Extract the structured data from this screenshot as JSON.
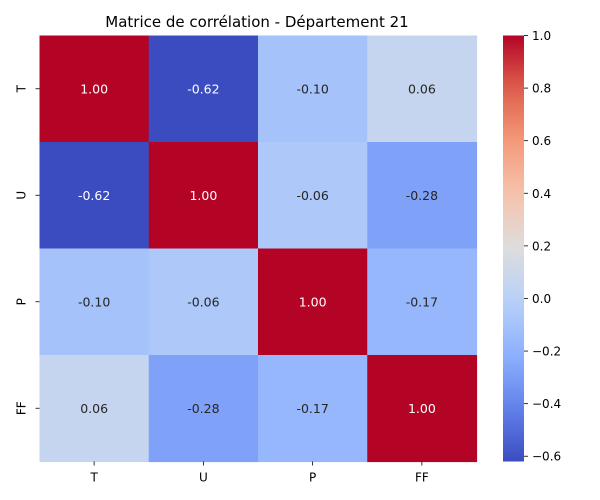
{
  "chart_data": {
    "type": "heatmap",
    "title": "Matrice de corrélation - Département 21",
    "x_labels": [
      "T",
      "U",
      "P",
      "FF"
    ],
    "y_labels": [
      "T",
      "U",
      "P",
      "FF"
    ],
    "values": [
      [
        1.0,
        -0.62,
        -0.1,
        0.06
      ],
      [
        -0.62,
        1.0,
        -0.06,
        -0.28
      ],
      [
        -0.1,
        -0.06,
        1.0,
        -0.17
      ],
      [
        0.06,
        -0.28,
        -0.17,
        1.0
      ]
    ],
    "cell_labels": [
      [
        "1.00",
        "-0.62",
        "-0.10",
        "0.06"
      ],
      [
        "-0.62",
        "1.00",
        "-0.06",
        "-0.28"
      ],
      [
        "-0.10",
        "-0.06",
        "1.00",
        "-0.17"
      ],
      [
        "0.06",
        "-0.28",
        "-0.17",
        "1.00"
      ]
    ],
    "colormap": "coolwarm",
    "color_range": [
      -0.62,
      1.0
    ],
    "colorbar": {
      "ticks": [
        1.0,
        0.8,
        0.6,
        0.4,
        0.2,
        0.0,
        -0.2,
        -0.4,
        -0.6
      ],
      "tick_labels": [
        "1.0",
        "0.8",
        "0.6",
        "0.4",
        "0.2",
        "0.0",
        "−0.2",
        "−0.4",
        "−0.6"
      ]
    }
  }
}
